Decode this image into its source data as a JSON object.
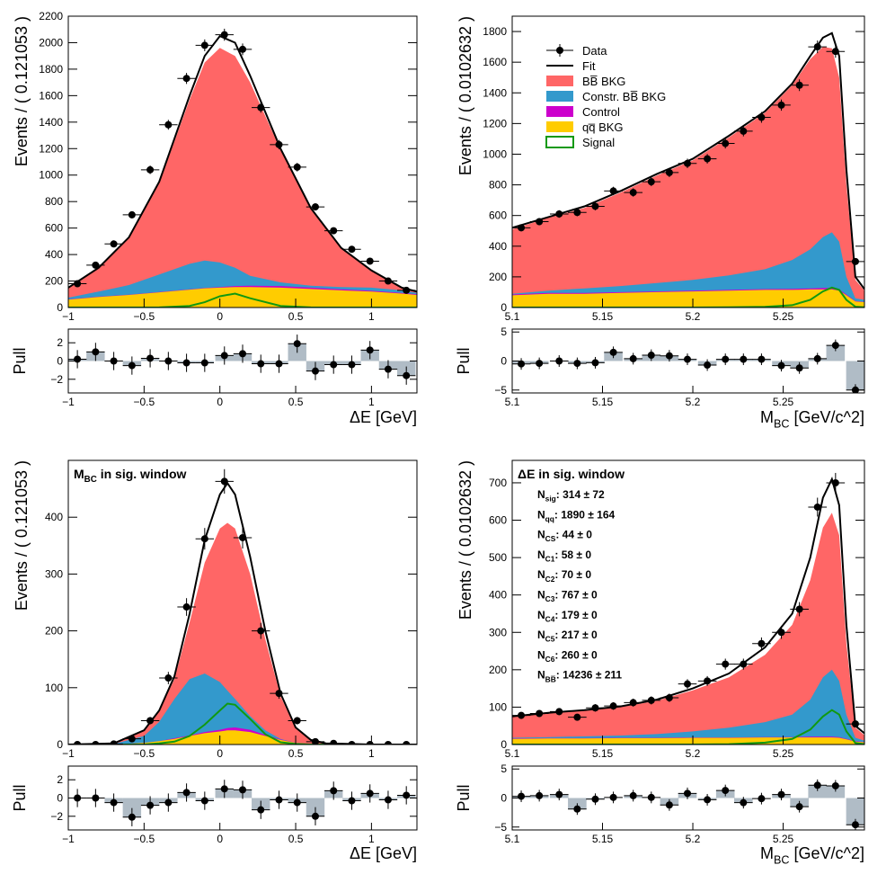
{
  "colors": {
    "bb_bkg": "#ff6666",
    "constr_bb_bkg": "#3399cc",
    "control": "#cc00cc",
    "qq_bkg": "#ffcc00",
    "signal": "#119911",
    "fit": "#000000",
    "data": "#000000",
    "pull_bar": "#b0bcc6"
  },
  "legend": {
    "entries": [
      {
        "label": "Data",
        "key": "data"
      },
      {
        "label": "Fit",
        "key": "fit"
      },
      {
        "label": "BB̅ BKG",
        "key": "bb_bkg"
      },
      {
        "label": "Constr. BB̅ BKG",
        "key": "constr_bb_bkg"
      },
      {
        "label": "Control",
        "key": "control"
      },
      {
        "label": "qq̅ BKG",
        "key": "qq_bkg"
      },
      {
        "label": "Signal",
        "key": "signal"
      }
    ]
  },
  "chart_data": [
    {
      "type": "area",
      "name": "deltaE_full",
      "ylabel": "Events / ( 0.121053 )",
      "xlabel": "ΔE [GeV]",
      "pull_ylabel": "Pull",
      "xlim": [
        -1.0,
        1.3
      ],
      "ylim": [
        0,
        2200
      ],
      "xticks": [
        -1,
        -0.5,
        0,
        0.5,
        1
      ],
      "xticklabels": [
        "−1",
        "−0.5",
        "0",
        "0.5",
        "1"
      ],
      "yticks": [
        0,
        200,
        400,
        600,
        800,
        1000,
        1200,
        1400,
        1600,
        1800,
        2000,
        2200
      ],
      "pull_ylim": [
        -3.5,
        3.5
      ],
      "pull_yticks": [
        -2,
        0,
        2
      ],
      "curves": {
        "x": [
          -1.0,
          -0.8,
          -0.6,
          -0.4,
          -0.2,
          -0.1,
          0.0,
          0.1,
          0.2,
          0.4,
          0.6,
          0.8,
          1.0,
          1.2,
          1.3
        ],
        "fit": [
          150,
          300,
          530,
          950,
          1600,
          1900,
          2050,
          2000,
          1750,
          1200,
          750,
          450,
          280,
          150,
          120
        ],
        "bb_stack": [
          150,
          300,
          530,
          940,
          1570,
          1850,
          1960,
          1900,
          1700,
          1190,
          745,
          448,
          278,
          148,
          118
        ],
        "constr_stack": [
          75,
          120,
          170,
          250,
          330,
          355,
          340,
          300,
          240,
          190,
          165,
          155,
          150,
          130,
          110
        ],
        "qq_stack": [
          60,
          80,
          95,
          115,
          135,
          145,
          150,
          155,
          155,
          150,
          140,
          130,
          120,
          105,
          95
        ],
        "control_stack": [
          62,
          82,
          97,
          117,
          138,
          148,
          155,
          162,
          165,
          162,
          150,
          138,
          126,
          110,
          100
        ],
        "signal": [
          0,
          0,
          0,
          1,
          12,
          40,
          85,
          105,
          70,
          12,
          1,
          0,
          0,
          0,
          0
        ]
      },
      "points": {
        "x": [
          -0.94,
          -0.82,
          -0.7,
          -0.58,
          -0.46,
          -0.34,
          -0.22,
          -0.1,
          0.03,
          0.15,
          0.27,
          0.39,
          0.51,
          0.63,
          0.75,
          0.87,
          0.99,
          1.11,
          1.23
        ],
        "y": [
          180,
          320,
          480,
          700,
          1040,
          1380,
          1730,
          1980,
          2060,
          1950,
          1510,
          1230,
          1060,
          760,
          580,
          440,
          350,
          200,
          130
        ]
      },
      "pulls": [
        0.2,
        1.0,
        0.0,
        -0.5,
        0.3,
        0.0,
        -0.2,
        -0.2,
        0.6,
        0.8,
        -0.3,
        -0.3,
        1.9,
        -1.1,
        -0.4,
        -0.4,
        1.2,
        -0.9,
        -1.6
      ],
      "annotation": []
    },
    {
      "type": "area",
      "name": "mbc_full",
      "ylabel": "Events / ( 0.0102632 )",
      "xlabel": "M_BC [GeV/c^2]",
      "pull_ylabel": "Pull",
      "xlim": [
        5.1,
        5.295
      ],
      "ylim": [
        0,
        1900
      ],
      "xticks": [
        5.1,
        5.15,
        5.2,
        5.25
      ],
      "xticklabels": [
        "5.1",
        "5.15",
        "5.2",
        "5.25"
      ],
      "yticks": [
        0,
        200,
        400,
        600,
        800,
        1000,
        1200,
        1400,
        1600,
        1800
      ],
      "pull_ylim": [
        -5.5,
        5.5
      ],
      "pull_yticks": [
        -5,
        0,
        5
      ],
      "curves": {
        "x": [
          5.1,
          5.12,
          5.14,
          5.16,
          5.18,
          5.2,
          5.22,
          5.24,
          5.255,
          5.265,
          5.272,
          5.277,
          5.281,
          5.285,
          5.29,
          5.295
        ],
        "fit": [
          520,
          590,
          660,
          760,
          870,
          970,
          1120,
          1280,
          1460,
          1640,
          1760,
          1790,
          1640,
          900,
          200,
          120
        ],
        "bb_stack": [
          510,
          585,
          650,
          750,
          860,
          960,
          1110,
          1270,
          1450,
          1620,
          1700,
          1690,
          1500,
          800,
          180,
          110
        ],
        "constr_stack": [
          90,
          110,
          125,
          140,
          160,
          180,
          210,
          250,
          310,
          380,
          460,
          490,
          430,
          200,
          60,
          50
        ],
        "qq_stack": [
          80,
          90,
          90,
          95,
          100,
          105,
          110,
          115,
          115,
          118,
          118,
          118,
          110,
          80,
          40,
          35
        ],
        "control_stack": [
          85,
          95,
          95,
          100,
          105,
          110,
          115,
          120,
          122,
          125,
          128,
          128,
          118,
          85,
          42,
          37
        ],
        "signal": [
          0,
          0,
          0,
          0,
          0,
          0,
          1,
          4,
          15,
          50,
          105,
          130,
          115,
          50,
          5,
          2
        ]
      },
      "points": {
        "x": [
          5.105,
          5.115,
          5.126,
          5.136,
          5.146,
          5.156,
          5.167,
          5.177,
          5.187,
          5.197,
          5.208,
          5.218,
          5.228,
          5.238,
          5.249,
          5.259,
          5.269,
          5.279,
          5.29
        ],
        "y": [
          520,
          560,
          610,
          620,
          660,
          760,
          750,
          820,
          880,
          940,
          970,
          1070,
          1150,
          1240,
          1320,
          1450,
          1700,
          1670,
          300
        ]
      },
      "pulls": [
        -0.5,
        -0.4,
        0.0,
        -0.4,
        -0.3,
        1.5,
        0.4,
        1.0,
        0.9,
        0.3,
        -0.7,
        0.3,
        0.3,
        0.3,
        -0.8,
        -1.2,
        0.4,
        2.7,
        -5.0
      ],
      "annotation": []
    },
    {
      "type": "area",
      "name": "deltaE_sig_window",
      "title": "M_BC in sig. window",
      "ylabel": "Events / ( 0.121053 )",
      "xlabel": "ΔE [GeV]",
      "pull_ylabel": "Pull",
      "xlim": [
        -1.0,
        1.3
      ],
      "ylim": [
        0,
        500
      ],
      "xticks": [
        -1,
        -0.5,
        0,
        0.5,
        1
      ],
      "xticklabels": [
        "−1",
        "−0.5",
        "0",
        "0.5",
        "1"
      ],
      "yticks": [
        0,
        100,
        200,
        300,
        400
      ],
      "pull_ylim": [
        -3.5,
        3.5
      ],
      "pull_yticks": [
        -2,
        0,
        2
      ],
      "curves": {
        "x": [
          -1.0,
          -0.7,
          -0.5,
          -0.4,
          -0.3,
          -0.2,
          -0.1,
          0.0,
          0.05,
          0.1,
          0.2,
          0.3,
          0.4,
          0.5,
          0.6,
          0.7,
          1.0,
          1.3
        ],
        "fit": [
          0,
          2,
          25,
          60,
          120,
          230,
          360,
          440,
          460,
          440,
          330,
          200,
          90,
          30,
          8,
          2,
          0,
          0
        ],
        "bb_stack": [
          0,
          2,
          25,
          60,
          115,
          215,
          320,
          380,
          390,
          380,
          300,
          185,
          85,
          28,
          7,
          2,
          0,
          0
        ],
        "constr_stack": [
          0,
          1,
          15,
          40,
          80,
          115,
          125,
          110,
          95,
          80,
          50,
          25,
          10,
          3,
          1,
          0,
          0,
          0
        ],
        "qq_stack": [
          0,
          0,
          3,
          6,
          10,
          15,
          20,
          23,
          25,
          25,
          22,
          15,
          8,
          3,
          1,
          0,
          0,
          0
        ],
        "control_stack": [
          0,
          0,
          3,
          6,
          11,
          16,
          22,
          26,
          29,
          30,
          26,
          17,
          9,
          3,
          1,
          0,
          0,
          0
        ],
        "signal": [
          0,
          0,
          0,
          2,
          5,
          15,
          35,
          60,
          72,
          70,
          45,
          18,
          4,
          1,
          0,
          0,
          0,
          0
        ]
      },
      "points": {
        "x": [
          -0.94,
          -0.82,
          -0.7,
          -0.58,
          -0.46,
          -0.34,
          -0.22,
          -0.1,
          0.03,
          0.15,
          0.27,
          0.39,
          0.51,
          0.63,
          0.75,
          0.87,
          0.99,
          1.11,
          1.23
        ],
        "y": [
          0,
          0,
          1,
          10,
          42,
          117,
          242,
          362,
          463,
          364,
          200,
          90,
          42,
          5,
          2,
          0,
          0,
          0,
          0
        ]
      },
      "pulls": [
        0.0,
        0.0,
        -0.5,
        -2.1,
        -0.8,
        -0.5,
        0.6,
        -0.3,
        1.0,
        0.9,
        -1.3,
        -0.2,
        -0.5,
        -2.0,
        0.8,
        -0.3,
        0.5,
        -0.2,
        0.3
      ],
      "annotation": []
    },
    {
      "type": "area",
      "name": "mbc_sig_window",
      "title": "ΔE in sig. window",
      "ylabel": "Events / ( 0.0102632 )",
      "xlabel": "M_BC [GeV/c^2]",
      "pull_ylabel": "Pull",
      "xlim": [
        5.1,
        5.295
      ],
      "ylim": [
        0,
        760
      ],
      "xticks": [
        5.1,
        5.15,
        5.2,
        5.25
      ],
      "xticklabels": [
        "5.1",
        "5.15",
        "5.2",
        "5.25"
      ],
      "yticks": [
        0,
        100,
        200,
        300,
        400,
        500,
        600,
        700
      ],
      "pull_ylim": [
        -5.5,
        5.5
      ],
      "pull_yticks": [
        -5,
        0,
        5
      ],
      "curves": {
        "x": [
          5.1,
          5.12,
          5.14,
          5.16,
          5.18,
          5.2,
          5.22,
          5.24,
          5.255,
          5.265,
          5.272,
          5.277,
          5.281,
          5.285,
          5.29,
          5.295
        ],
        "fit": [
          75,
          85,
          92,
          102,
          120,
          150,
          190,
          260,
          350,
          500,
          660,
          710,
          640,
          320,
          50,
          30
        ],
        "bb_stack": [
          73,
          83,
          90,
          100,
          117,
          145,
          180,
          240,
          320,
          440,
          580,
          620,
          560,
          270,
          45,
          25
        ],
        "constr_stack": [
          18,
          20,
          22,
          24,
          28,
          35,
          45,
          60,
          80,
          120,
          180,
          200,
          170,
          80,
          18,
          10
        ],
        "qq_stack": [
          15,
          16,
          16,
          17,
          17,
          18,
          18,
          19,
          19,
          19,
          19,
          19,
          18,
          14,
          8,
          6
        ],
        "control_stack": [
          16,
          17,
          17,
          18,
          18,
          19,
          19,
          20,
          20,
          21,
          21,
          21,
          20,
          15,
          9,
          7
        ],
        "signal": [
          0,
          0,
          0,
          0,
          0,
          0,
          1,
          5,
          15,
          40,
          75,
          92,
          80,
          35,
          4,
          1
        ]
      },
      "points": {
        "x": [
          5.105,
          5.115,
          5.126,
          5.136,
          5.146,
          5.156,
          5.167,
          5.177,
          5.187,
          5.197,
          5.208,
          5.218,
          5.228,
          5.238,
          5.249,
          5.259,
          5.269,
          5.279,
          5.29
        ],
        "y": [
          78,
          83,
          88,
          73,
          98,
          103,
          112,
          118,
          125,
          162,
          170,
          215,
          215,
          270,
          300,
          362,
          635,
          700,
          55
        ]
      },
      "pulls": [
        0.3,
        0.4,
        0.6,
        -1.9,
        -0.2,
        0.1,
        0.4,
        0.1,
        -1.2,
        0.8,
        -0.3,
        1.3,
        -0.8,
        -0.1,
        0.6,
        -1.5,
        2.2,
        2.1,
        -4.6
      ],
      "annotation": [
        "N_sig: 314 ± 72",
        "N_qq: 1890 ± 164",
        "N_CS: 44 ± 0",
        "N_C1: 58 ± 0",
        "N_C2: 70 ± 0",
        "N_C3: 767 ± 0",
        "N_C4: 179 ± 0",
        "N_C5: 217 ± 0",
        "N_C6: 260 ± 0",
        "N_BB̅: 14236 ± 211"
      ]
    }
  ]
}
